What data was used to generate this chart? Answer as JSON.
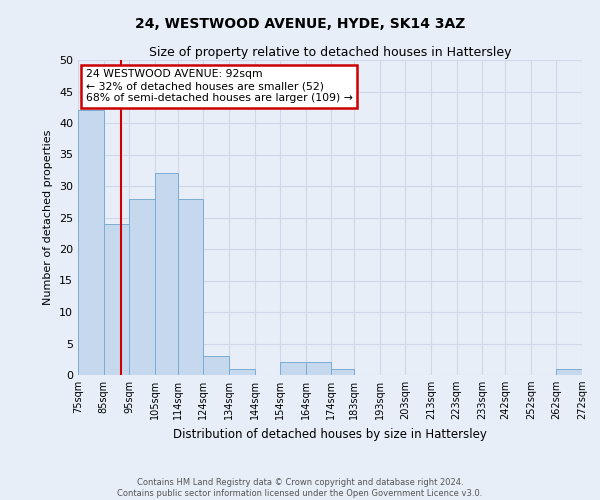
{
  "title": "24, WESTWOOD AVENUE, HYDE, SK14 3AZ",
  "subtitle": "Size of property relative to detached houses in Hattersley",
  "xlabel": "Distribution of detached houses by size in Hattersley",
  "ylabel": "Number of detached properties",
  "bar_color": "#c5d8ed",
  "bar_edge_color": "#7aadd4",
  "vline_color": "#cc0000",
  "vline_x": 92,
  "annotation_box_text": "24 WESTWOOD AVENUE: 92sqm\n← 32% of detached houses are smaller (52)\n68% of semi-detached houses are larger (109) →",
  "annotation_box_color": "#cc0000",
  "annotation_box_bg": "#ffffff",
  "grid_color": "#d0d8e8",
  "plot_bg_color": "#e8eef8",
  "fig_bg_color": "#e8eef8",
  "yticks": [
    0,
    5,
    10,
    15,
    20,
    25,
    30,
    35,
    40,
    45,
    50
  ],
  "ylim": [
    0,
    50
  ],
  "bin_edges": [
    75,
    85,
    95,
    105,
    114,
    124,
    134,
    144,
    154,
    164,
    174,
    183,
    193,
    203,
    213,
    223,
    233,
    242,
    252,
    262,
    272
  ],
  "bin_labels": [
    "75sqm",
    "85sqm",
    "95sqm",
    "105sqm",
    "114sqm",
    "124sqm",
    "134sqm",
    "144sqm",
    "154sqm",
    "164sqm",
    "174sqm",
    "183sqm",
    "193sqm",
    "203sqm",
    "213sqm",
    "223sqm",
    "233sqm",
    "242sqm",
    "252sqm",
    "262sqm",
    "272sqm"
  ],
  "bar_heights": [
    42,
    24,
    28,
    32,
    28,
    3,
    1,
    0,
    2,
    2,
    1,
    0,
    0,
    0,
    0,
    0,
    0,
    0,
    0,
    1
  ],
  "footer_line1": "Contains HM Land Registry data © Crown copyright and database right 2024.",
  "footer_line2": "Contains public sector information licensed under the Open Government Licence v3.0."
}
